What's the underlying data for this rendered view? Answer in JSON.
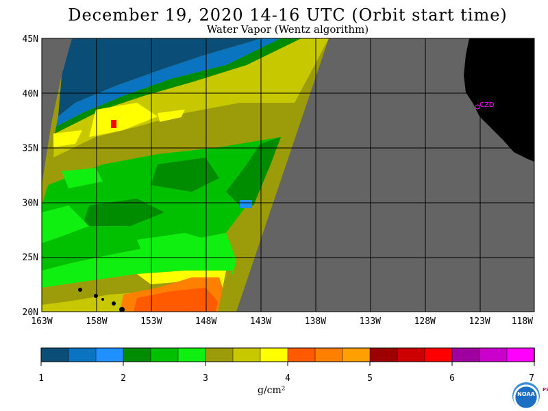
{
  "chart_data": {
    "type": "heatmap",
    "title": "December 19, 2020  14-16 UTC  (Orbit start time)",
    "subtitle": "Water Vapor (Wentz algorithm)",
    "lat_ticks": [
      "45N",
      "40N",
      "35N",
      "30N",
      "25N",
      "20N"
    ],
    "lat_values": [
      45,
      40,
      35,
      30,
      25,
      20
    ],
    "lon_ticks": [
      "163W",
      "158W",
      "153W",
      "148W",
      "143W",
      "138W",
      "133W",
      "128W",
      "123W",
      "118W"
    ],
    "lon_values": [
      -163,
      -158,
      -153,
      -148,
      -143,
      -138,
      -133,
      -128,
      -123,
      -118
    ],
    "xlim": [
      -163,
      -118
    ],
    "ylim": [
      20,
      45
    ],
    "grid": true,
    "station_label": "CZD",
    "colorbar": {
      "ticks": [
        "1",
        "2",
        "3",
        "4",
        "5",
        "6",
        "7"
      ],
      "unit": "g/cm²",
      "range": [
        1,
        7
      ],
      "colors": [
        "#0a4e78",
        "#0a74c0",
        "#1e90ff",
        "#008c00",
        "#00c000",
        "#10f010",
        "#9c9c0a",
        "#c8c800",
        "#ffff00",
        "#ff5a00",
        "#ff8000",
        "#ffa000",
        "#9c0000",
        "#cc0000",
        "#ff0000",
        "#a000a0",
        "#cc00cc",
        "#ff00ff"
      ]
    },
    "colors": {
      "land": "#000000",
      "no_data": "#646464",
      "station": "#ff00ff"
    }
  },
  "logo": {
    "noaa_text": "NOAA",
    "psl_text": "PSL"
  }
}
